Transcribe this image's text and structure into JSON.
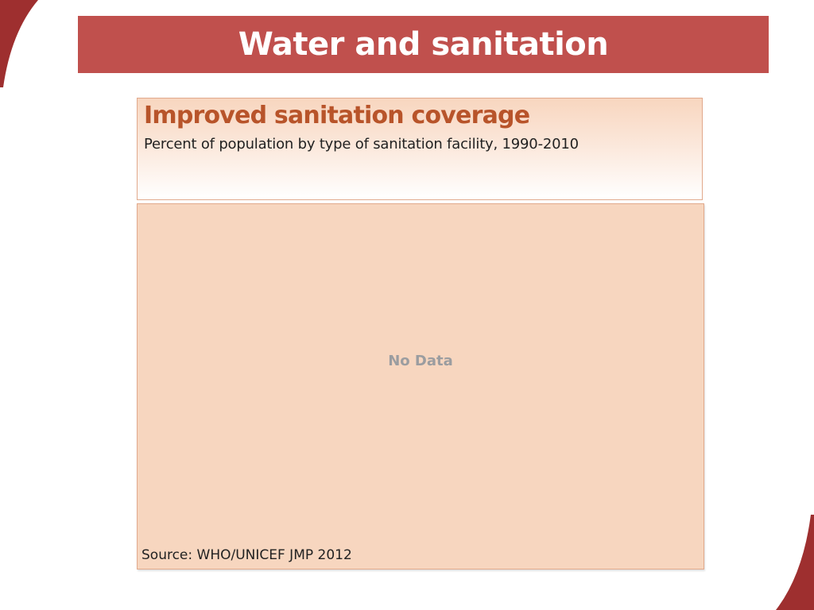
{
  "slide": {
    "title": "Water and sanitation"
  },
  "colors": {
    "title_bar": "#c0504d",
    "chart_title": "#b8542a",
    "chart_background": "#f7d6bf",
    "accent_corner": "#9e2f2f"
  },
  "chart_data": {
    "type": "bar",
    "title": "Improved sanitation coverage",
    "subtitle": "Percent of population by type of sanitation facility, 1990-2010",
    "placeholder": "No Data",
    "source": "Source:  WHO/UNICEF JMP 2012",
    "categories": [],
    "series": []
  }
}
